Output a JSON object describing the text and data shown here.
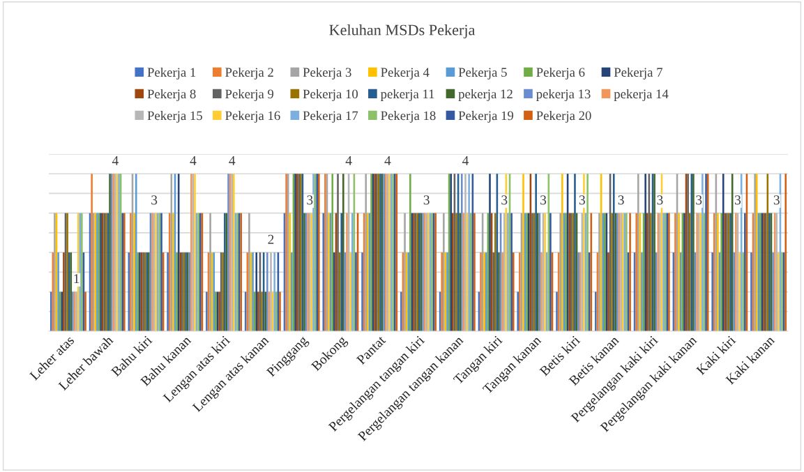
{
  "chart_data": {
    "type": "bar",
    "title": "Keluhan MSDs Pekerja",
    "categories": [
      "Leher atas",
      "Leher bawah",
      "Bahu kiri",
      "Bahu kanan",
      "Lengan atas kiri",
      "Lengan atas kanan",
      "Pinggang",
      "Bokong",
      "Pantat",
      "Pergelangan tangan kiri",
      "Pergelangan tangan kanan",
      "Tangan kiri",
      "Tangan kanan",
      "Betis kiri",
      "Betis kanan",
      "Pergelangan kaki kiri",
      "Pergelangan kaki kanan",
      "Kaki kiri",
      "Kaki kanan"
    ],
    "series": [
      {
        "name": "Pekerja 1",
        "color": "#4472c4",
        "values": [
          1,
          3,
          2,
          2,
          1,
          1,
          3,
          3,
          2,
          1,
          1,
          1,
          1,
          1,
          1,
          2,
          2,
          2,
          2
        ]
      },
      {
        "name": "Pekerja 2",
        "color": "#ed7d31",
        "values": [
          2,
          4,
          3,
          3,
          2,
          2,
          4,
          4,
          3,
          2,
          2,
          2,
          2,
          2,
          2,
          3,
          3,
          3,
          3
        ]
      },
      {
        "name": "Pekerja 3",
        "color": "#a5a5a5",
        "values": [
          3,
          3,
          4,
          4,
          3,
          3,
          4,
          4,
          4,
          3,
          3,
          3,
          3,
          3,
          3,
          4,
          4,
          4,
          4
        ]
      },
      {
        "name": "Pekerja 4",
        "color": "#ffc000",
        "values": [
          3,
          3,
          3,
          3,
          2,
          2,
          3,
          3,
          3,
          2,
          2,
          2,
          4,
          4,
          4,
          3,
          3,
          3,
          4
        ]
      },
      {
        "name": "Pekerja 5",
        "color": "#5b9bd5",
        "values": [
          2,
          3,
          4,
          4,
          2,
          2,
          2,
          3,
          3,
          2,
          2,
          2,
          3,
          3,
          3,
          2,
          2,
          2,
          3
        ]
      },
      {
        "name": "Pekerja 6",
        "color": "#70ad47",
        "values": [
          1,
          3,
          2,
          2,
          1,
          1,
          4,
          4,
          4,
          4,
          4,
          3,
          3,
          3,
          3,
          3,
          3,
          3,
          3
        ]
      },
      {
        "name": "Pekerja 7",
        "color": "#264478",
        "values": [
          1,
          3,
          2,
          4,
          1,
          2,
          4,
          2,
          4,
          3,
          4,
          4,
          3,
          4,
          3,
          4,
          3,
          4,
          3
        ]
      },
      {
        "name": "Pekerja 8",
        "color": "#9e480e",
        "values": [
          2,
          3,
          2,
          2,
          1,
          1,
          4,
          3,
          4,
          3,
          3,
          3,
          4,
          3,
          2,
          3,
          4,
          3,
          3
        ]
      },
      {
        "name": "Pekerja 9",
        "color": "#636363",
        "values": [
          3,
          3,
          2,
          2,
          2,
          2,
          4,
          4,
          4,
          3,
          4,
          2,
          3,
          3,
          4,
          4,
          4,
          3,
          3
        ]
      },
      {
        "name": "Pekerja 10",
        "color": "#997300",
        "values": [
          3,
          3,
          2,
          2,
          2,
          1,
          4,
          2,
          4,
          3,
          3,
          3,
          3,
          3,
          3,
          3,
          3,
          3,
          4
        ]
      },
      {
        "name": "pekerja 11",
        "color": "#255e91",
        "values": [
          2,
          3,
          2,
          2,
          3,
          2,
          4,
          3,
          4,
          3,
          4,
          4,
          4,
          4,
          4,
          4,
          4,
          3,
          3
        ]
      },
      {
        "name": "pekerja 12",
        "color": "#43682b",
        "values": [
          2,
          4,
          2,
          2,
          3,
          1,
          3,
          4,
          4,
          3,
          3,
          2,
          3,
          3,
          3,
          4,
          4,
          4,
          3
        ]
      },
      {
        "name": "pekerja 13",
        "color": "#698ed0",
        "values": [
          1,
          4,
          3,
          2,
          4,
          2,
          3,
          2,
          4,
          3,
          4,
          3,
          3,
          2,
          3,
          2,
          2,
          2,
          2
        ]
      },
      {
        "name": "pekerja 14",
        "color": "#f1975a",
        "values": [
          1,
          4,
          3,
          4,
          4,
          1,
          3,
          3,
          4,
          3,
          3,
          2,
          2,
          2,
          3,
          3,
          3,
          3,
          3
        ]
      },
      {
        "name": "Pekerja 15",
        "color": "#b7b7b7",
        "values": [
          1,
          4,
          3,
          4,
          4,
          2,
          3,
          4,
          4,
          3,
          4,
          3,
          3,
          3,
          3,
          3,
          3,
          3,
          3
        ],
        "value_labels": [
          "1",
          "4",
          "3",
          "4",
          "4",
          "2",
          "3",
          "4",
          "4",
          "3",
          "4",
          "3",
          "3",
          "3",
          "3",
          "3",
          "3",
          "3",
          "3"
        ]
      },
      {
        "name": "Pekerja 16",
        "color": "#ffcd33",
        "values": [
          3,
          4,
          3,
          4,
          4,
          1,
          3,
          2,
          4,
          3,
          3,
          4,
          3,
          4,
          3,
          4,
          3,
          2,
          2
        ]
      },
      {
        "name": "Pekerja 17",
        "color": "#7cafdd",
        "values": [
          3,
          4,
          3,
          3,
          3,
          2,
          4,
          3,
          4,
          3,
          4,
          3,
          2,
          3,
          3,
          3,
          4,
          4,
          4
        ]
      },
      {
        "name": "Pekerja 18",
        "color": "#8cc168",
        "values": [
          3,
          4,
          3,
          3,
          3,
          1,
          4,
          4,
          4,
          3,
          3,
          4,
          4,
          4,
          3,
          3,
          3,
          2,
          2
        ]
      },
      {
        "name": "Pekerja 19",
        "color": "#335aa1",
        "values": [
          2,
          3,
          3,
          3,
          3,
          2,
          4,
          2,
          4,
          3,
          4,
          3,
          3,
          2,
          2,
          3,
          4,
          3,
          2
        ]
      },
      {
        "name": "Pekerja 20",
        "color": "#d26012",
        "values": [
          1,
          3,
          2,
          3,
          3,
          1,
          4,
          3,
          4,
          3,
          3,
          2,
          2,
          3,
          3,
          3,
          4,
          4,
          4
        ]
      }
    ],
    "ylim": [
      0,
      4.5
    ],
    "yticks": [
      {
        "value": 0,
        "label": null
      },
      {
        "value": 0.5,
        "label": null
      },
      {
        "value": 1,
        "label": null
      },
      {
        "value": 1.5,
        "label": null
      },
      {
        "value": 2,
        "label": null
      },
      {
        "value": 2.5,
        "label": null
      },
      {
        "value": 3,
        "label": null
      },
      {
        "value": 3.5,
        "label": null
      },
      {
        "value": 4,
        "label": null
      },
      {
        "value": 4.5,
        "label": null
      }
    ],
    "tick_labels": "x",
    "grid": "y",
    "legend": "top"
  }
}
